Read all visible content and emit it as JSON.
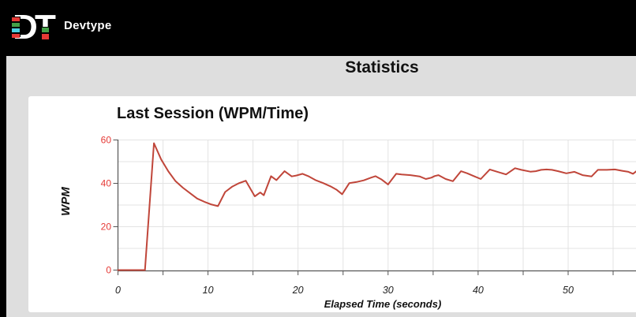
{
  "header": {
    "logo_mark": "DT",
    "app_name": "Devtype",
    "logo_colors": {
      "red": "#e53935",
      "green": "#43a047",
      "cyan": "#4dd0e1",
      "letter": "#ffffff"
    }
  },
  "page": {
    "title": "Statistics",
    "background": "#dedede",
    "header_background": "#000000",
    "card_background": "#ffffff"
  },
  "chart_data": {
    "type": "line",
    "title": "Last Session (WPM/Time)",
    "xlabel": "Elapsed Time (seconds)",
    "ylabel": "WPM",
    "x_ticks": [
      0,
      10,
      20,
      30,
      40,
      50
    ],
    "x_tick_marks": [
      0,
      5,
      10,
      15,
      20,
      25,
      30,
      35,
      40,
      45,
      50,
      55
    ],
    "x_gridlines": [
      5,
      10,
      15,
      20,
      25,
      30,
      35,
      40,
      45,
      50,
      55
    ],
    "y_ticks": [
      0,
      20,
      40,
      60
    ],
    "y_gridlines": [
      10,
      20,
      30,
      40,
      50,
      60
    ],
    "xlim": [
      0,
      58.8
    ],
    "ylim": [
      0,
      60
    ],
    "grid": true,
    "legend": "none",
    "line_color": "#c0463a",
    "tick_label_color": "#e53935",
    "x_tick_label_color": "#222222",
    "axis_color": "#555555",
    "grid_color": "#e3e3e3",
    "series": [
      {
        "name": "WPM",
        "points": [
          [
            0,
            0
          ],
          [
            1,
            0
          ],
          [
            2,
            0
          ],
          [
            3,
            0
          ],
          [
            4,
            58.5
          ],
          [
            4.8,
            51
          ],
          [
            5.6,
            45.5
          ],
          [
            6.4,
            41
          ],
          [
            7.2,
            38
          ],
          [
            8,
            35.5
          ],
          [
            8.8,
            33
          ],
          [
            9.6,
            31.5
          ],
          [
            10.4,
            30.2
          ],
          [
            11.1,
            29.5
          ],
          [
            11.9,
            36
          ],
          [
            12.7,
            38.5
          ],
          [
            13.4,
            40
          ],
          [
            14.2,
            41.2
          ],
          [
            15.2,
            34
          ],
          [
            15.8,
            35.8
          ],
          [
            16.2,
            34.5
          ],
          [
            17,
            43.3
          ],
          [
            17.6,
            41.5
          ],
          [
            18.5,
            45.6
          ],
          [
            19.3,
            43.2
          ],
          [
            19.8,
            43.6
          ],
          [
            20.5,
            44.4
          ],
          [
            21.2,
            43.2
          ],
          [
            22,
            41.4
          ],
          [
            22.8,
            40.1
          ],
          [
            23.6,
            38.6
          ],
          [
            24.3,
            37
          ],
          [
            24.9,
            35
          ],
          [
            25.7,
            40.1
          ],
          [
            26.5,
            40.6
          ],
          [
            27.3,
            41.4
          ],
          [
            28.1,
            42.6
          ],
          [
            28.6,
            43.3
          ],
          [
            29.3,
            41.7
          ],
          [
            30,
            39.5
          ],
          [
            30.9,
            44.4
          ],
          [
            31.5,
            44.1
          ],
          [
            32.5,
            43.8
          ],
          [
            33.5,
            43.2
          ],
          [
            34.2,
            42
          ],
          [
            34.8,
            42.6
          ],
          [
            35.2,
            43.4
          ],
          [
            35.6,
            43.8
          ],
          [
            36.4,
            42
          ],
          [
            37.2,
            41
          ],
          [
            38.1,
            45.6
          ],
          [
            38.8,
            44.6
          ],
          [
            39.6,
            43.2
          ],
          [
            40.3,
            42
          ],
          [
            41.3,
            46.4
          ],
          [
            41.9,
            45.6
          ],
          [
            43.1,
            44.1
          ],
          [
            44.1,
            47
          ],
          [
            44.8,
            46.2
          ],
          [
            45.8,
            45.4
          ],
          [
            46.4,
            45.6
          ],
          [
            47,
            46.2
          ],
          [
            47.6,
            46.4
          ],
          [
            48.2,
            46.2
          ],
          [
            48.9,
            45.6
          ],
          [
            49.8,
            44.6
          ],
          [
            50.7,
            45.3
          ],
          [
            51.6,
            43.8
          ],
          [
            52.6,
            43.2
          ],
          [
            53.3,
            46.2
          ],
          [
            54.3,
            46.2
          ],
          [
            55.2,
            46.4
          ],
          [
            56,
            45.8
          ],
          [
            56.7,
            45.3
          ],
          [
            57.2,
            44.4
          ],
          [
            58,
            47
          ],
          [
            58.4,
            45.2
          ]
        ]
      }
    ]
  }
}
